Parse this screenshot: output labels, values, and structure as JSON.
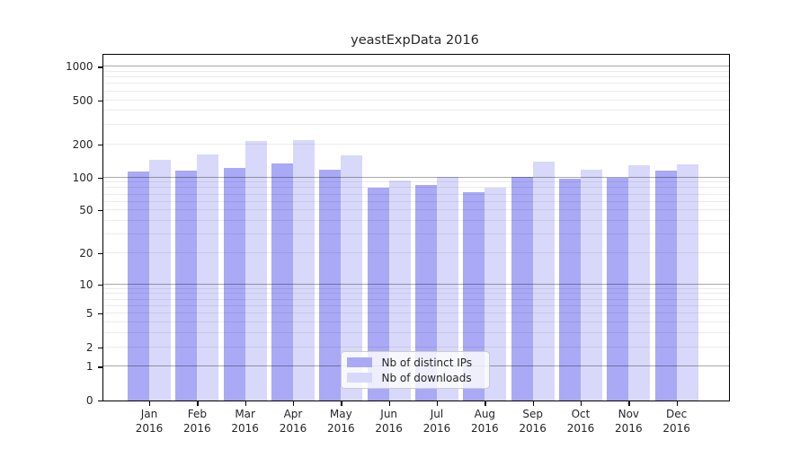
{
  "chart_data": {
    "type": "bar",
    "title": "yeastExpData 2016",
    "categories": [
      "Jan",
      "Feb",
      "Mar",
      "Apr",
      "May",
      "Jun",
      "Jul",
      "Aug",
      "Sep",
      "Oct",
      "Nov",
      "Dec"
    ],
    "x_tick_second_line": "2016",
    "series": [
      {
        "name": "Nb of distinct IPs",
        "color": "#a9a9f6",
        "values": [
          114,
          115,
          123,
          133,
          118,
          81,
          86,
          74,
          102,
          97,
          100,
          115
        ]
      },
      {
        "name": "Nb of downloads",
        "color": "#d8d8fa",
        "values": [
          144,
          162,
          214,
          217,
          159,
          94,
          102,
          80,
          139,
          118,
          129,
          131
        ]
      }
    ],
    "yscale": "log10(v+1)",
    "ylim": [
      0,
      1280
    ],
    "yticks": [
      1000,
      500,
      200,
      100,
      50,
      20,
      10,
      5,
      2,
      1,
      0
    ],
    "grid": true,
    "legend_position": "lower-center",
    "colors": {
      "major_grid": "rgba(0,0,0,0.34)",
      "minor_grid": "rgba(0,0,0,0.08)",
      "spine": "#000000",
      "legend_border": "#cccccc",
      "legend_bg": "rgba(255,255,255,0.8)",
      "title_text": "#262626"
    }
  }
}
